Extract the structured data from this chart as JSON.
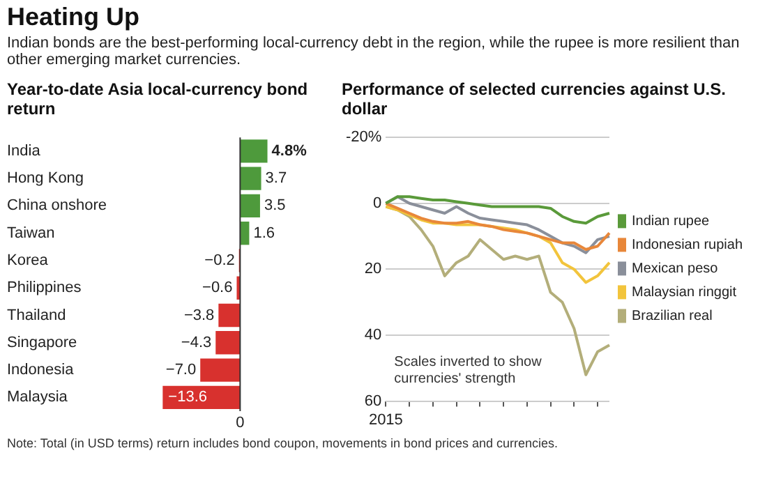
{
  "chart_data": [
    {
      "type": "other",
      "title": "Heating Up",
      "subtitle": "Indian bonds are the best-performing local-currency debt in the region, while the rupee is more resilient than other emerging market currencies."
    },
    {
      "type": "bar",
      "orientation": "horizontal",
      "title": "Year-to-date Asia local-currency bond return",
      "categories": [
        "India",
        "Hong Kong",
        "China onshore",
        "Taiwan",
        "Korea",
        "Philippines",
        "Thailand",
        "Singapore",
        "Indonesia",
        "Malaysia"
      ],
      "values": [
        4.8,
        3.7,
        3.5,
        1.6,
        -0.2,
        -0.6,
        -3.8,
        -4.3,
        -7.0,
        -13.6
      ],
      "colors": [
        "#4e9a3c",
        "#4e9a3c",
        "#4e9a3c",
        "#4e9a3c",
        "#d8312e",
        "#d8312e",
        "#d8312e",
        "#d8312e",
        "#d8312e",
        "#d8312e"
      ],
      "value_labels": [
        "4.8%",
        "3.7",
        "3.5",
        "1.6",
        "−0.2",
        "−0.6",
        "−3.8",
        "−4.3",
        "−7.0",
        "−13.6"
      ],
      "ref_lines": [
        {
          "axis": "x",
          "value": 0,
          "label": "0"
        }
      ],
      "annotations": [
        "Note: Total (in USD terms) return includes bond coupon, movements in bond prices and currencies."
      ]
    },
    {
      "type": "line",
      "title": "Performance of selected currencies against U.S. dollar",
      "ylim": [
        60,
        -20
      ],
      "yticks": [
        {
          "value": -20,
          "label": "-20%"
        },
        0,
        20,
        40,
        60
      ],
      "grid": "y",
      "categories": [
        "2015",
        null,
        null,
        null,
        null,
        null,
        null,
        null,
        null,
        null,
        null,
        null,
        null,
        null,
        null,
        null,
        null,
        null,
        null,
        null
      ],
      "legend": "right",
      "marker": "none",
      "annotations": [
        "Scales inverted to show currencies' strength"
      ],
      "series": [
        {
          "name": "Indian rupee",
          "color": "#5a9a3a",
          "values": [
            0,
            -2,
            -2,
            -1.5,
            -1,
            -1,
            -0.5,
            0,
            0.5,
            1,
            1,
            1,
            1,
            1,
            1.5,
            4,
            5.5,
            6,
            4,
            3
          ]
        },
        {
          "name": "Indonesian rupiah",
          "color": "#e8873a",
          "values": [
            0,
            1.5,
            3,
            4.5,
            5.5,
            6,
            6,
            5.5,
            6.5,
            7,
            8,
            8.5,
            9,
            10,
            11,
            12,
            12,
            14,
            13,
            9
          ]
        },
        {
          "name": "Mexican peso",
          "color": "#8a8f9a",
          "values": [
            0,
            -2,
            0,
            1,
            2,
            3,
            1,
            3,
            4.5,
            5,
            5.5,
            6,
            6.5,
            8,
            10,
            12,
            13,
            15,
            11,
            10
          ]
        },
        {
          "name": "Malaysian ringgit",
          "color": "#f2c43c",
          "values": [
            1,
            2,
            3.5,
            5,
            6,
            6,
            6.5,
            6.5,
            6.5,
            7,
            7.5,
            8,
            9,
            10,
            12,
            18,
            20,
            24,
            22,
            18
          ]
        },
        {
          "name": "Brazilian real",
          "color": "#b3ae7a",
          "values": [
            1,
            2,
            4,
            8,
            13,
            22,
            18,
            16,
            11,
            14,
            17,
            16,
            17,
            16,
            27,
            30,
            38,
            52,
            45,
            43
          ]
        }
      ]
    }
  ]
}
